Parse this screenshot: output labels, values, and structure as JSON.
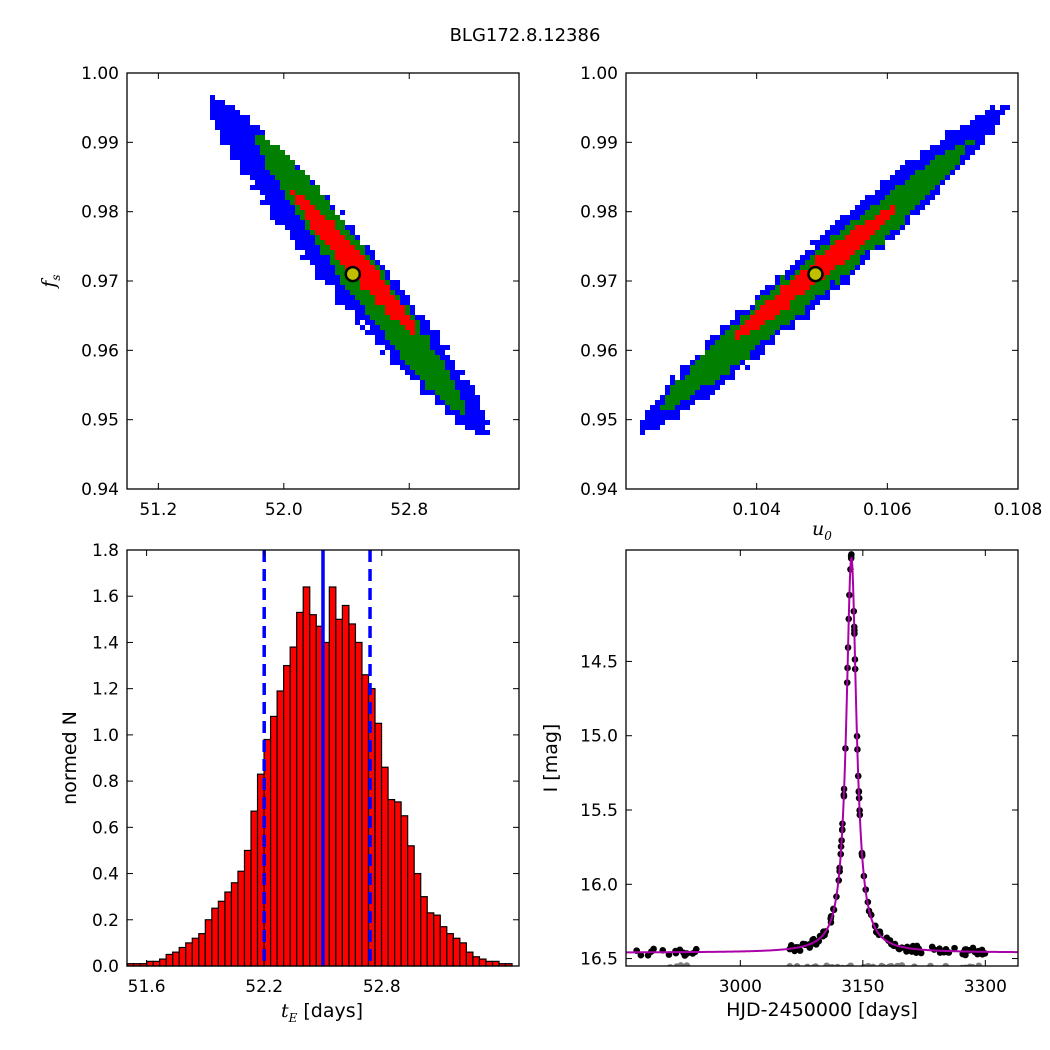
{
  "figure": {
    "title": "BLG172.8.12386"
  },
  "chart_data": [
    {
      "id": "tE_vs_fs",
      "type": "heatmap",
      "description_layers": [
        "blue",
        "green",
        "red"
      ],
      "xlabel": "",
      "ylabel": "f_s",
      "ylabel_parts": {
        "main": "f",
        "sub": "s"
      },
      "xlim": [
        51.0,
        53.5
      ],
      "ylim": [
        0.94,
        1.0
      ],
      "xticks": [
        "51.2",
        "52.0",
        "52.8"
      ],
      "xtick_values": [
        51.2,
        52.0,
        52.8
      ],
      "yticks": [
        "1.00",
        "0.99",
        "0.98",
        "0.97",
        "0.96",
        "0.95",
        "0.94"
      ],
      "ytick_values": [
        1.0,
        0.99,
        0.98,
        0.97,
        0.96,
        0.95,
        0.94
      ],
      "best_fit": {
        "x": 52.44,
        "y": 0.971
      },
      "contours": {
        "blue": {
          "from": [
            51.56,
            0.9955
          ],
          "to": [
            53.27,
            0.9485
          ],
          "halfwidth": 0.004
        },
        "green": {
          "from": [
            51.85,
            0.9905
          ],
          "to": [
            53.13,
            0.9515
          ],
          "halfwidth": 0.0026
        },
        "red": {
          "from": [
            52.07,
            0.9825
          ],
          "to": [
            52.84,
            0.9625
          ],
          "halfwidth": 0.0015
        }
      },
      "colors": {
        "blue": "#0000ff",
        "green": "#007f00",
        "red": "#ff0000",
        "marker_fill": "#bfbf00"
      }
    },
    {
      "id": "u0_vs_fs",
      "type": "heatmap",
      "xlabel": "u_0",
      "xlabel_parts": {
        "main": "u",
        "sub": "0"
      },
      "ylabel": "",
      "xlim": [
        0.102,
        0.108
      ],
      "ylim": [
        0.94,
        1.0
      ],
      "xticks": [
        "0.104",
        "0.106",
        "0.108"
      ],
      "xtick_values": [
        0.104,
        0.106,
        0.108
      ],
      "yticks": [
        "1.00",
        "0.99",
        "0.98",
        "0.97",
        "0.96",
        "0.95",
        "0.94"
      ],
      "ytick_values": [
        1.0,
        0.99,
        0.98,
        0.97,
        0.96,
        0.95,
        0.94
      ],
      "best_fit": {
        "x": 0.1049,
        "y": 0.971
      },
      "contours": {
        "blue": {
          "from": [
            0.1023,
            0.949
          ],
          "to": [
            0.1077,
            0.9945
          ],
          "halfwidth": 0.0035
        },
        "green": {
          "from": [
            0.1026,
            0.952
          ],
          "to": [
            0.1072,
            0.9895
          ],
          "halfwidth": 0.0026
        },
        "red": {
          "from": [
            0.1037,
            0.962
          ],
          "to": [
            0.1061,
            0.9805
          ],
          "halfwidth": 0.0014
        }
      },
      "colors": {
        "blue": "#0000ff",
        "green": "#007f00",
        "red": "#ff0000",
        "marker_fill": "#bfbf00"
      }
    },
    {
      "id": "tE_histogram",
      "type": "bar",
      "xlabel": "t_E [days]",
      "xlabel_parts": {
        "main": "t",
        "sub": "E",
        "rest": " [days]"
      },
      "ylabel": "normed N",
      "xlim": [
        51.5,
        53.5
      ],
      "ylim": [
        0.0,
        1.8
      ],
      "xticks": [
        "51.6",
        "52.2",
        "52.8"
      ],
      "xtick_values": [
        51.6,
        52.2,
        52.8
      ],
      "yticks": [
        "1.8",
        "1.6",
        "1.4",
        "1.2",
        "1.0",
        "0.8",
        "0.6",
        "0.4",
        "0.2",
        "0.0"
      ],
      "ytick_values": [
        1.8,
        1.6,
        1.4,
        1.2,
        1.0,
        0.8,
        0.6,
        0.4,
        0.2,
        0.0
      ],
      "bin_start": 51.5,
      "bin_width": 0.0333,
      "values": [
        0.01,
        0.01,
        0.01,
        0.02,
        0.02,
        0.03,
        0.05,
        0.06,
        0.08,
        0.1,
        0.12,
        0.14,
        0.2,
        0.25,
        0.28,
        0.32,
        0.36,
        0.41,
        0.5,
        0.67,
        0.83,
        0.98,
        1.08,
        1.19,
        1.3,
        1.38,
        1.53,
        1.64,
        1.52,
        1.47,
        1.4,
        1.64,
        1.5,
        1.56,
        1.48,
        1.4,
        1.26,
        1.2,
        1.05,
        0.86,
        0.72,
        0.71,
        0.65,
        0.52,
        0.4,
        0.3,
        0.23,
        0.22,
        0.17,
        0.14,
        0.12,
        0.1,
        0.06,
        0.04,
        0.03,
        0.02,
        0.02,
        0.01,
        0.01
      ],
      "median": 52.5,
      "bounds": [
        52.2,
        52.74
      ],
      "colors": {
        "bar": "#ff0000",
        "edge": "#000000",
        "line": "#0000ff"
      }
    },
    {
      "id": "light_curve",
      "type": "scatter",
      "xlabel": "HJD-2450000 [days]",
      "ylabel": "I [mag]",
      "xlim": [
        2860,
        3340
      ],
      "ylim": [
        16.55,
        13.75
      ],
      "xticks": [
        "3000",
        "3150",
        "3300"
      ],
      "xtick_values": [
        3000,
        3150,
        3300
      ],
      "yticks": [
        "14.5",
        "15.0",
        "15.5",
        "16.0",
        "16.5"
      ],
      "ytick_values": [
        14.5,
        15.0,
        15.5,
        16.0,
        16.5
      ],
      "model": {
        "t0": 3136,
        "baseline": 16.46,
        "peak": 13.8,
        "tau": 7.5,
        "residual_level": 16.57
      },
      "series": [
        {
          "name": "data",
          "color": "#000000"
        },
        {
          "name": "residuals",
          "color": "#808080"
        },
        {
          "name": "model",
          "color": "#aa00aa"
        }
      ]
    }
  ]
}
